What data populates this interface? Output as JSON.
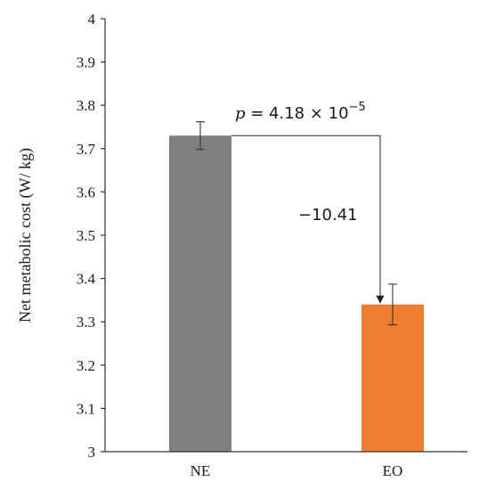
{
  "chart_data": {
    "type": "bar",
    "categories": [
      "NE",
      "EO"
    ],
    "values": [
      3.73,
      3.34
    ],
    "errors": [
      0.032,
      0.047
    ],
    "colors": [
      "#808080",
      "#ED7D31"
    ],
    "ylabel": "Net metabolic cost (W/ kg)",
    "xlabel": "",
    "title": "",
    "ylim": [
      3,
      4
    ],
    "yticks": [
      "3",
      "3.1",
      "3.2",
      "3.3",
      "3.4",
      "3.5",
      "3.6",
      "3.7",
      "3.8",
      "3.9",
      "4"
    ],
    "grid": false,
    "annotations": {
      "p_value_prefix": "p",
      "p_value_text": " = 4.18 × 10",
      "p_value_exponent": "−5",
      "difference": "−10.41"
    }
  }
}
